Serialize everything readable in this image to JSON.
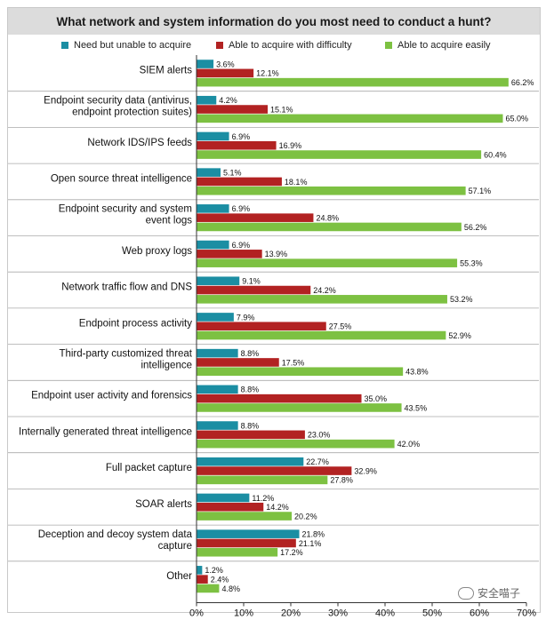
{
  "chart_data": {
    "type": "bar",
    "orientation": "horizontal",
    "title": "What network and system information do you most need to conduct a hunt?",
    "legend_position": "top",
    "series": [
      {
        "name": "Need but unable to acquire",
        "color": "#1b8ea3",
        "values": [
          3.6,
          4.2,
          6.9,
          5.1,
          6.9,
          6.9,
          9.1,
          7.9,
          8.8,
          8.8,
          8.8,
          22.7,
          11.2,
          21.8,
          1.2
        ],
        "labels": [
          "3.6%",
          "4.2%",
          "6.9%",
          "5.1%",
          "6.9%",
          "6.9%",
          "9.1%",
          "7.9%",
          "8.8%",
          "8.8%",
          "8.8%",
          "22.7%",
          "11.2%",
          "21.8%",
          "1.2%"
        ]
      },
      {
        "name": "Able to acquire with difficulty",
        "color": "#b22222",
        "values": [
          12.1,
          15.1,
          16.9,
          18.1,
          24.8,
          13.9,
          24.2,
          27.5,
          17.5,
          35.0,
          23.0,
          32.9,
          14.2,
          21.1,
          2.4
        ],
        "labels": [
          "12.1%",
          "15.1%",
          "16.9%",
          "18.1%",
          "24.8%",
          "13.9%",
          "24.2%",
          "27.5%",
          "17.5%",
          "35.0%",
          "23.0%",
          "32.9%",
          "14.2%",
          "21.1%",
          "2.4%"
        ]
      },
      {
        "name": "Able to acquire easily",
        "color": "#7dc142",
        "values": [
          66.2,
          65.0,
          60.4,
          57.1,
          56.2,
          55.3,
          53.2,
          52.9,
          43.8,
          43.5,
          42.0,
          27.8,
          20.2,
          17.2,
          4.8
        ],
        "labels": [
          "66.2%",
          "65.0%",
          "60.4%",
          "57.1%",
          "56.2%",
          "55.3%",
          "53.2%",
          "52.9%",
          "43.8%",
          "43.5%",
          "42.0%",
          "27.8%",
          "20.2%",
          "17.2%",
          "4.8%"
        ]
      }
    ],
    "categories": [
      [
        "SIEM alerts"
      ],
      [
        "Endpoint security data (antivirus,",
        "endpoint protection suites)"
      ],
      [
        "Network IDS/IPS feeds"
      ],
      [
        "Open source threat intelligence"
      ],
      [
        "Endpoint security and system",
        "event logs"
      ],
      [
        "Web proxy logs"
      ],
      [
        "Network traffic flow and DNS"
      ],
      [
        "Endpoint process activity"
      ],
      [
        "Third-party customized threat",
        "intelligence"
      ],
      [
        "Endpoint user activity and forensics"
      ],
      [
        "Internally generated threat intelligence"
      ],
      [
        "Full packet capture"
      ],
      [
        "SOAR alerts"
      ],
      [
        "Deception and decoy system data",
        "capture"
      ],
      [
        "Other"
      ]
    ],
    "xlim": [
      0,
      70
    ],
    "xticks": [
      0,
      10,
      20,
      30,
      40,
      50,
      60,
      70
    ],
    "xtick_labels": [
      "0%",
      "10%",
      "20%",
      "30%",
      "40%",
      "50%",
      "60%",
      "70%"
    ],
    "grid": false
  },
  "watermark": {
    "text": "安全喵子"
  },
  "colors": {
    "title_band": "#dcdcdc",
    "row_divider": "#aaaaaa",
    "axis": "#333333"
  }
}
